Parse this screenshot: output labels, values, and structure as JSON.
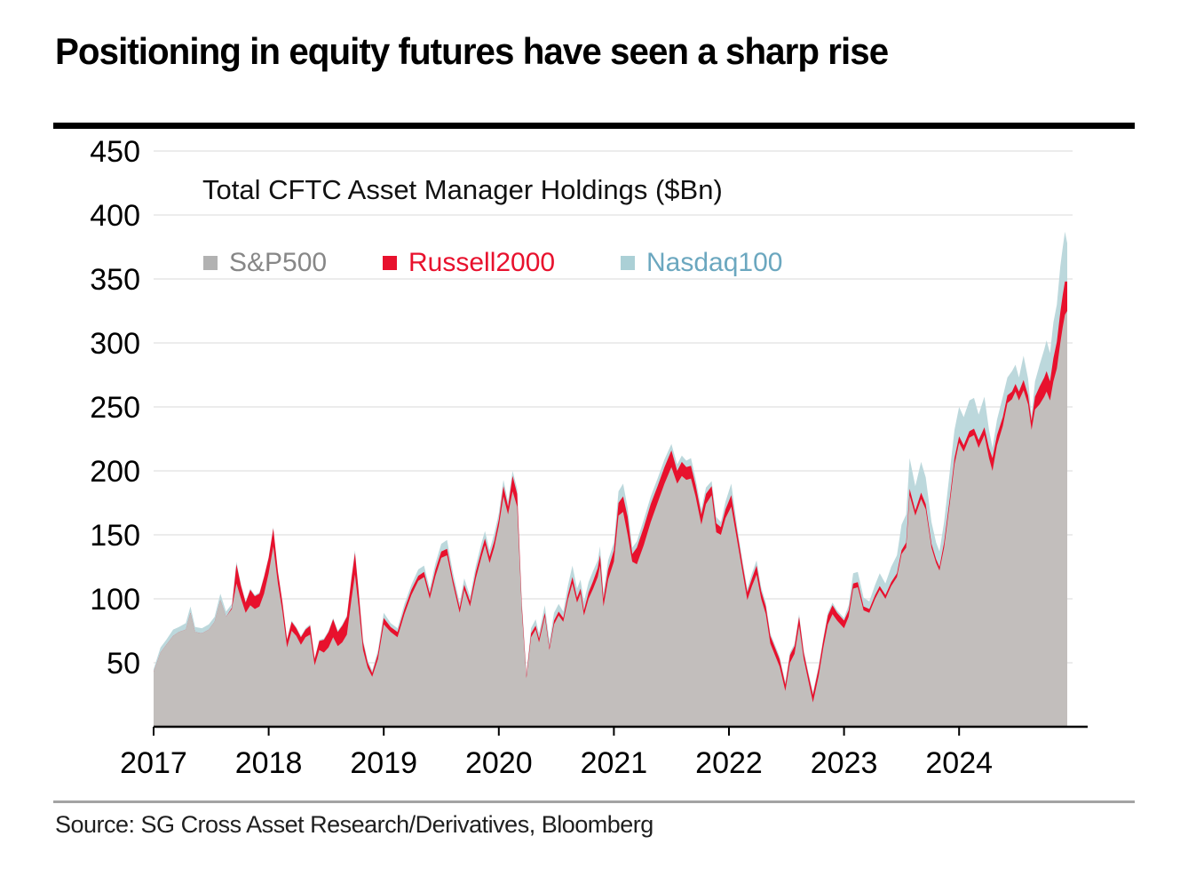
{
  "page": {
    "title": "Positioning in equity futures have seen a sharp rise",
    "source": "Source: SG Cross Asset Research/Derivatives, Bloomberg"
  },
  "chart_data": {
    "type": "area",
    "stacked": true,
    "subtitle": "Total CFTC Asset Manager Holdings ($Bn)",
    "unit": "$Bn",
    "xlim": [
      2017.0,
      2024.94
    ],
    "ylim": [
      0,
      450
    ],
    "y_ticks": [
      50,
      100,
      150,
      200,
      250,
      300,
      350,
      400,
      450
    ],
    "x_ticks": [
      2017,
      2018,
      2019,
      2020,
      2021,
      2022,
      2023,
      2024
    ],
    "grid": "horizontal-light",
    "legend_position": "top-left-inside",
    "colors": {
      "grid": "#ececec",
      "axis": "#000000"
    },
    "x": [
      2017.0,
      2017.06,
      2017.11,
      2017.17,
      2017.22,
      2017.28,
      2017.32,
      2017.36,
      2017.42,
      2017.48,
      2017.53,
      2017.58,
      2017.63,
      2017.68,
      2017.72,
      2017.76,
      2017.8,
      2017.84,
      2017.88,
      2017.92,
      2017.96,
      2018.0,
      2018.04,
      2018.08,
      2018.12,
      2018.16,
      2018.2,
      2018.24,
      2018.28,
      2018.32,
      2018.36,
      2018.4,
      2018.44,
      2018.48,
      2018.52,
      2018.56,
      2018.6,
      2018.64,
      2018.68,
      2018.72,
      2018.75,
      2018.78,
      2018.82,
      2018.86,
      2018.9,
      2018.95,
      2019.0,
      2019.06,
      2019.12,
      2019.18,
      2019.24,
      2019.3,
      2019.35,
      2019.4,
      2019.45,
      2019.5,
      2019.55,
      2019.6,
      2019.66,
      2019.7,
      2019.75,
      2019.8,
      2019.85,
      2019.88,
      2019.92,
      2019.96,
      2020.0,
      2020.04,
      2020.08,
      2020.12,
      2020.16,
      2020.2,
      2020.24,
      2020.28,
      2020.32,
      2020.35,
      2020.4,
      2020.44,
      2020.48,
      2020.52,
      2020.56,
      2020.6,
      2020.64,
      2020.68,
      2020.71,
      2020.74,
      2020.78,
      2020.82,
      2020.86,
      2020.88,
      2020.91,
      2020.95,
      2021.0,
      2021.04,
      2021.08,
      2021.12,
      2021.16,
      2021.2,
      2021.26,
      2021.32,
      2021.38,
      2021.44,
      2021.5,
      2021.55,
      2021.59,
      2021.63,
      2021.67,
      2021.71,
      2021.76,
      2021.8,
      2021.85,
      2021.89,
      2021.93,
      2021.97,
      2022.02,
      2022.07,
      2022.12,
      2022.16,
      2022.2,
      2022.24,
      2022.28,
      2022.32,
      2022.36,
      2022.4,
      2022.44,
      2022.49,
      2022.53,
      2022.57,
      2022.61,
      2022.65,
      2022.69,
      2022.73,
      2022.78,
      2022.82,
      2022.86,
      2022.9,
      2022.94,
      2023.0,
      2023.04,
      2023.08,
      2023.12,
      2023.17,
      2023.22,
      2023.27,
      2023.31,
      2023.36,
      2023.41,
      2023.46,
      2023.5,
      2023.54,
      2023.57,
      2023.62,
      2023.67,
      2023.71,
      2023.76,
      2023.8,
      2023.83,
      2023.87,
      2023.92,
      2023.96,
      2024.0,
      2024.04,
      2024.09,
      2024.13,
      2024.17,
      2024.22,
      2024.26,
      2024.29,
      2024.33,
      2024.38,
      2024.42,
      2024.46,
      2024.49,
      2024.52,
      2024.56,
      2024.6,
      2024.63,
      2024.66,
      2024.7,
      2024.74,
      2024.76,
      2024.79,
      2024.82,
      2024.85,
      2024.88,
      2024.9,
      2024.92,
      2024.94
    ],
    "series": [
      {
        "name": "S&P500",
        "color": "#c2bebc",
        "legend_color": "#b2b2b2",
        "label_color": "#878787",
        "values": [
          43,
          58,
          64,
          71,
          74,
          76,
          89,
          74,
          73,
          76,
          82,
          99,
          86,
          92,
          112,
          100,
          89,
          95,
          92,
          94,
          104,
          120,
          141,
          112,
          90,
          62,
          75,
          71,
          64,
          70,
          72,
          48,
          60,
          58,
          62,
          70,
          63,
          66,
          72,
          100,
          119,
          95,
          60,
          46,
          39,
          53,
          80,
          74,
          70,
          88,
          103,
          114,
          117,
          100,
          118,
          132,
          134,
          112,
          89,
          107,
          94,
          116,
          133,
          142,
          128,
          140,
          157,
          180,
          166,
          184,
          172,
          90,
          38,
          70,
          76,
          66,
          86,
          60,
          80,
          87,
          82,
          99,
          112,
          97,
          104,
          87,
          100,
          108,
          117,
          126,
          94,
          115,
          129,
          165,
          168,
          150,
          129,
          127,
          142,
          160,
          175,
          190,
          203,
          190,
          196,
          193,
          194,
          180,
          158,
          174,
          181,
          152,
          150,
          163,
          172,
          146,
          120,
          99,
          110,
          119,
          100,
          88,
          65,
          56,
          47,
          28,
          50,
          57,
          79,
          53,
          36,
          19,
          40,
          62,
          80,
          88,
          83,
          77,
          86,
          108,
          109,
          91,
          89,
          100,
          107,
          100,
          110,
          117,
          135,
          140,
          181,
          165,
          178,
          170,
          140,
          128,
          122,
          140,
          175,
          205,
          222,
          215,
          226,
          228,
          218,
          228,
          210,
          200,
          220,
          235,
          253,
          256,
          262,
          255,
          263,
          252,
          232,
          248,
          252,
          258,
          262,
          255,
          270,
          280,
          300,
          312,
          322,
          325
        ]
      },
      {
        "name": "Russell2000",
        "color": "#e8112d",
        "legend_color": "#e8112d",
        "label_color": "#e8112d",
        "values": [
          0,
          0,
          0,
          0,
          0,
          0,
          0,
          0,
          0,
          0,
          0,
          0,
          0,
          1,
          15,
          10,
          8,
          12,
          10,
          10,
          13,
          12,
          14,
          9,
          7,
          6,
          7,
          6,
          6,
          6,
          7,
          5,
          7,
          10,
          12,
          14,
          11,
          13,
          14,
          16,
          17,
          12,
          6,
          4,
          3,
          4,
          5,
          4,
          4,
          4,
          4,
          4,
          4,
          4,
          5,
          5,
          5,
          4,
          4,
          4,
          4,
          5,
          5,
          5,
          5,
          5,
          5,
          8,
          6,
          12,
          10,
          5,
          2,
          3,
          3,
          3,
          3,
          2,
          3,
          3,
          3,
          4,
          5,
          4,
          4,
          4,
          5,
          6,
          7,
          8,
          6,
          8,
          9,
          10,
          12,
          14,
          6,
          13,
          14,
          14,
          13,
          13,
          13,
          10,
          11,
          10,
          10,
          9,
          8,
          8,
          7,
          7,
          6,
          7,
          9,
          7,
          6,
          6,
          6,
          7,
          6,
          6,
          6,
          6,
          6,
          5,
          6,
          6,
          7,
          5,
          5,
          6,
          6,
          6,
          7,
          7,
          6,
          6,
          5,
          4,
          4,
          3,
          3,
          3,
          3,
          3,
          3,
          3,
          3,
          4,
          5,
          4,
          5,
          4,
          3,
          3,
          3,
          4,
          4,
          5,
          5,
          5,
          5,
          5,
          6,
          6,
          8,
          10,
          8,
          7,
          6,
          6,
          6,
          7,
          8,
          7,
          7,
          10,
          14,
          15,
          16,
          15,
          18,
          21,
          24,
          25,
          26,
          23
        ]
      },
      {
        "name": "Nasdaq100",
        "color": "#bcd8dc",
        "legend_color": "#abd0d6",
        "label_color": "#6ba7bf",
        "values": [
          2,
          4,
          4,
          5,
          4,
          5,
          5,
          4,
          4,
          4,
          4,
          5,
          4,
          3,
          2,
          1,
          1,
          1,
          1,
          1,
          1,
          1,
          1,
          1,
          1,
          1,
          1,
          1,
          1,
          1,
          1,
          1,
          1,
          1,
          1,
          1,
          1,
          1,
          1,
          2,
          2,
          2,
          2,
          2,
          2,
          3,
          4,
          3,
          3,
          4,
          4,
          5,
          5,
          4,
          5,
          6,
          7,
          5,
          4,
          5,
          4,
          5,
          6,
          6,
          5,
          6,
          5,
          5,
          4,
          4,
          4,
          3,
          2,
          4,
          5,
          4,
          6,
          5,
          6,
          6,
          5,
          7,
          9,
          7,
          7,
          7,
          8,
          8,
          6,
          7,
          5,
          7,
          6,
          9,
          10,
          7,
          5,
          5,
          6,
          6,
          6,
          6,
          5,
          5,
          5,
          5,
          6,
          5,
          4,
          5,
          4,
          5,
          4,
          6,
          9,
          4,
          3,
          3,
          4,
          4,
          3,
          3,
          2,
          2,
          2,
          2,
          2,
          2,
          2,
          2,
          2,
          2,
          2,
          2,
          2,
          2,
          2,
          2,
          4,
          8,
          8,
          7,
          6,
          8,
          10,
          9,
          12,
          14,
          20,
          22,
          24,
          19,
          24,
          21,
          17,
          13,
          12,
          16,
          21,
          22,
          23,
          22,
          24,
          24,
          20,
          24,
          14,
          8,
          12,
          16,
          14,
          16,
          15,
          11,
          19,
          13,
          4,
          12,
          17,
          22,
          24,
          22,
          28,
          29,
          36,
          37,
          39,
          30
        ]
      }
    ]
  }
}
